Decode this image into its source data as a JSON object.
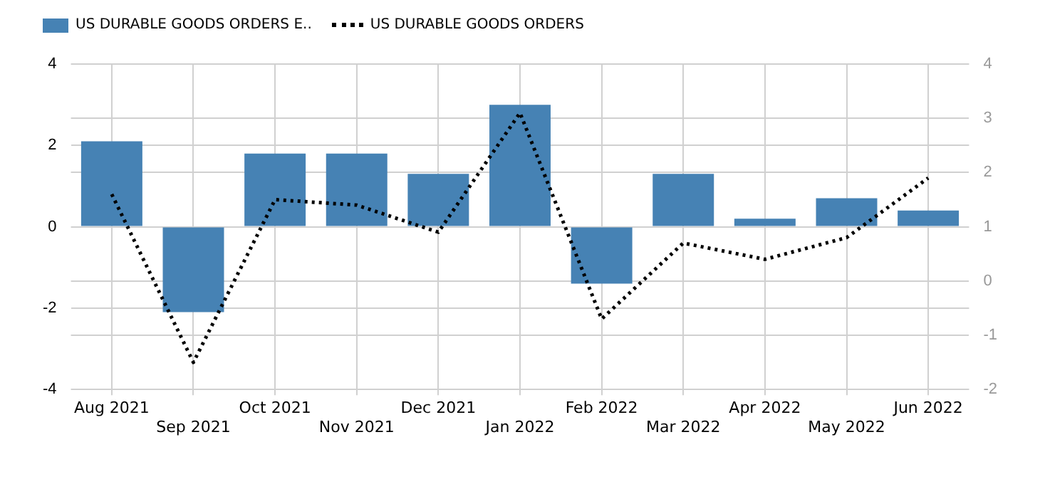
{
  "chart_data": {
    "type": "bar",
    "categories": [
      "Aug 2021",
      "Sep 2021",
      "Oct 2021",
      "Nov 2021",
      "Dec 2021",
      "Jan 2022",
      "Feb 2022",
      "Mar 2022",
      "Apr 2022",
      "May 2022",
      "Jun 2022"
    ],
    "series": [
      {
        "name": "US DURABLE GOODS ORDERS E..",
        "color": "#4682b4",
        "values": [
          2.1,
          -2.1,
          1.8,
          1.8,
          1.3,
          3.0,
          -1.4,
          1.3,
          0.2,
          0.7,
          0.4
        ]
      },
      {
        "name": "US DURABLE GOODS ORDERS",
        "type": "line",
        "axis": "y2",
        "color": "#000000",
        "line_style": "dotted",
        "marker": "none",
        "values": [
          1.6,
          -1.5,
          1.5,
          1.4,
          0.9,
          3.1,
          -0.7,
          0.7,
          0.4,
          0.8,
          1.9
        ]
      }
    ],
    "ylim": [
      -4,
      4
    ],
    "yticks": [
      -4,
      -2,
      0,
      2,
      4
    ],
    "y2lim": [
      -2,
      4
    ],
    "y2ticks": [
      -2,
      -1,
      0,
      1,
      2,
      3,
      4
    ],
    "grid": true,
    "legend": "top left"
  }
}
